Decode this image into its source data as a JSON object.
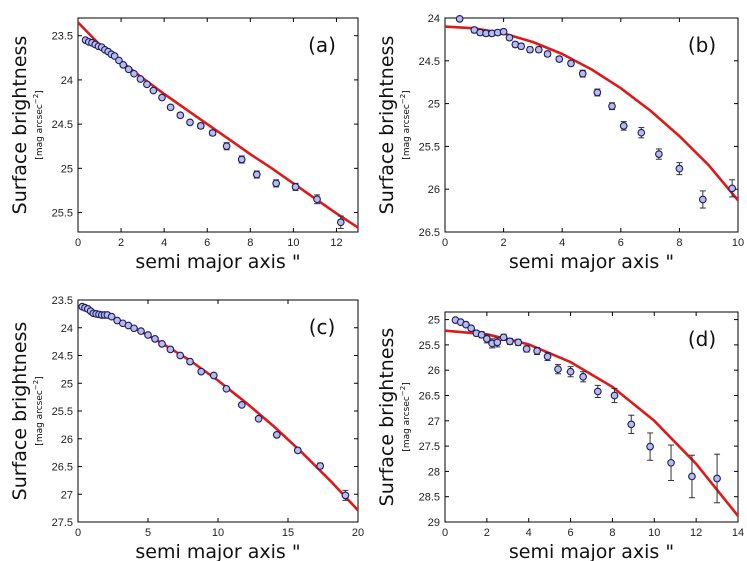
{
  "chart_data": [
    {
      "type": "scatter",
      "panel_label": "(a)",
      "xlabel": "semi major axis \"",
      "ylabel": "Surface brightness",
      "ylabel_unit": "[mag arcsec",
      "ylabel_unit_exp": "−2",
      "ylabel_unit_close": "]",
      "xlim": [
        0,
        13
      ],
      "ylim": [
        23.3,
        25.72
      ],
      "y_inverted": true,
      "xticks": [
        0,
        2,
        4,
        6,
        8,
        10,
        12
      ],
      "yticks": [
        23.5,
        24,
        24.5,
        25,
        25.5
      ],
      "xticklabels": [
        "0",
        "2",
        "4",
        "6",
        "8",
        "10",
        "12"
      ],
      "yticklabels": [
        "23.5",
        "24",
        "24.5",
        "25",
        "25.5"
      ],
      "series": [
        {
          "kind": "points",
          "color": "#1a1a6e",
          "x": [
            0.35,
            0.5,
            0.65,
            0.8,
            0.95,
            1.1,
            1.25,
            1.4,
            1.55,
            1.7,
            1.9,
            2.1,
            2.35,
            2.6,
            2.9,
            3.2,
            3.5,
            3.9,
            4.3,
            4.75,
            5.2,
            5.7,
            6.25,
            6.9,
            7.6,
            8.3,
            9.2,
            10.1,
            11.1,
            12.2
          ],
          "y": [
            23.55,
            23.57,
            23.58,
            23.6,
            23.62,
            23.63,
            23.66,
            23.68,
            23.71,
            23.73,
            23.78,
            23.83,
            23.88,
            23.93,
            23.99,
            24.05,
            24.12,
            24.2,
            24.31,
            24.4,
            24.48,
            24.52,
            24.6,
            24.75,
            24.9,
            25.07,
            25.17,
            25.21,
            25.35,
            25.61
          ],
          "err": [
            0.01,
            0.01,
            0.01,
            0.01,
            0.01,
            0.01,
            0.01,
            0.01,
            0.01,
            0.01,
            0.015,
            0.015,
            0.015,
            0.02,
            0.02,
            0.02,
            0.02,
            0.02,
            0.025,
            0.025,
            0.025,
            0.03,
            0.03,
            0.04,
            0.04,
            0.04,
            0.04,
            0.04,
            0.05,
            0.07
          ]
        },
        {
          "kind": "fit",
          "color": "#dd1a1a",
          "x": [
            0,
            1,
            2,
            3,
            4,
            5,
            6,
            7,
            8,
            9,
            10,
            11,
            12,
            13
          ],
          "y": [
            23.35,
            23.6,
            23.79,
            23.98,
            24.16,
            24.33,
            24.5,
            24.67,
            24.84,
            25.0,
            25.17,
            25.34,
            25.51,
            25.67
          ]
        }
      ]
    },
    {
      "type": "scatter",
      "panel_label": "(b)",
      "xlabel": "semi major axis \"",
      "ylabel": "Surface brightness",
      "ylabel_unit": "[mag arcsec",
      "ylabel_unit_exp": "−2",
      "ylabel_unit_close": "]",
      "xlim": [
        0,
        10
      ],
      "ylim": [
        24.0,
        26.5
      ],
      "y_inverted": true,
      "xticks": [
        0,
        2,
        4,
        6,
        8,
        10
      ],
      "yticks": [
        24,
        24.5,
        25,
        25.5,
        26,
        26.5
      ],
      "xticklabels": [
        "0",
        "2",
        "4",
        "6",
        "8",
        "10"
      ],
      "yticklabels": [
        "24",
        "24.5",
        "25",
        "25.5",
        "26",
        "26.5"
      ],
      "series": [
        {
          "kind": "points",
          "color": "#1a1a6e",
          "x": [
            0.5,
            1.0,
            1.2,
            1.4,
            1.6,
            1.8,
            2.0,
            2.2,
            2.4,
            2.6,
            2.9,
            3.2,
            3.5,
            3.9,
            4.3,
            4.7,
            5.2,
            5.7,
            6.1,
            6.7,
            7.3,
            8.0,
            8.8,
            9.8
          ],
          "y": [
            24.01,
            24.14,
            24.17,
            24.18,
            24.18,
            24.17,
            24.16,
            24.23,
            24.31,
            24.33,
            24.37,
            24.37,
            24.42,
            24.48,
            24.53,
            24.65,
            24.87,
            25.03,
            25.26,
            25.34,
            25.59,
            25.76,
            26.12,
            25.99
          ],
          "err": [
            0.02,
            0.03,
            0.03,
            0.03,
            0.03,
            0.03,
            0.03,
            0.03,
            0.03,
            0.03,
            0.03,
            0.03,
            0.03,
            0.03,
            0.03,
            0.04,
            0.04,
            0.04,
            0.05,
            0.06,
            0.06,
            0.07,
            0.1,
            0.1
          ]
        },
        {
          "kind": "fit",
          "color": "#dd1a1a",
          "x": [
            0,
            1,
            2,
            3,
            4,
            5,
            6,
            7,
            8,
            9,
            10
          ],
          "y": [
            24.1,
            24.12,
            24.18,
            24.28,
            24.42,
            24.6,
            24.82,
            25.08,
            25.38,
            25.72,
            26.13
          ]
        }
      ]
    },
    {
      "type": "scatter",
      "panel_label": "(c)",
      "xlabel": "semi major axis \"",
      "ylabel": "Surface brightness",
      "ylabel_unit": "[mag arcsec",
      "ylabel_unit_exp": "−2",
      "ylabel_unit_close": "]",
      "xlim": [
        0,
        20
      ],
      "ylim": [
        23.5,
        27.5
      ],
      "y_inverted": true,
      "xticks": [
        0,
        5,
        10,
        15,
        20
      ],
      "yticks": [
        23.5,
        24,
        24.5,
        25,
        25.5,
        26,
        26.5,
        27,
        27.5
      ],
      "xticklabels": [
        "0",
        "5",
        "10",
        "15",
        "20"
      ],
      "yticklabels": [
        "23.5",
        "24",
        "24.5",
        "25",
        "25.5",
        "26",
        "26.5",
        "27",
        "27.5"
      ],
      "series": [
        {
          "kind": "points",
          "color": "#1a1a6e",
          "x": [
            0.3,
            0.5,
            0.7,
            0.9,
            1.1,
            1.3,
            1.5,
            1.7,
            1.9,
            2.1,
            2.4,
            2.8,
            3.2,
            3.6,
            4.0,
            4.5,
            5.0,
            5.5,
            6.0,
            6.6,
            7.3,
            8.0,
            8.8,
            9.7,
            10.6,
            11.7,
            12.9,
            14.2,
            15.7,
            17.3,
            19.1
          ],
          "y": [
            23.62,
            23.64,
            23.66,
            23.7,
            23.74,
            23.75,
            23.76,
            23.77,
            23.77,
            23.77,
            23.8,
            23.87,
            23.92,
            23.96,
            24.01,
            24.06,
            24.13,
            24.2,
            24.29,
            24.39,
            24.5,
            24.61,
            24.79,
            24.86,
            25.1,
            25.39,
            25.64,
            25.93,
            26.21,
            26.49,
            27.02
          ],
          "err": [
            0.01,
            0.01,
            0.01,
            0.01,
            0.01,
            0.01,
            0.01,
            0.01,
            0.01,
            0.01,
            0.01,
            0.01,
            0.01,
            0.01,
            0.01,
            0.01,
            0.02,
            0.02,
            0.02,
            0.02,
            0.02,
            0.02,
            0.02,
            0.02,
            0.03,
            0.03,
            0.03,
            0.04,
            0.04,
            0.05,
            0.09
          ]
        },
        {
          "kind": "fit",
          "color": "#dd1a1a",
          "x": [
            0,
            2,
            4,
            6,
            8,
            10,
            12,
            14,
            16,
            18,
            20
          ],
          "y": [
            23.63,
            23.76,
            24.0,
            24.28,
            24.59,
            24.95,
            25.35,
            25.78,
            26.25,
            26.75,
            27.29
          ]
        }
      ]
    },
    {
      "type": "scatter",
      "panel_label": "(d)",
      "xlabel": "semi major axis \"",
      "ylabel": "Surface brightness",
      "ylabel_unit": "[mag arcsec",
      "ylabel_unit_exp": "−2",
      "ylabel_unit_close": "]",
      "xlim": [
        0,
        14
      ],
      "ylim": [
        24.85,
        29.0
      ],
      "y_inverted": true,
      "xticks": [
        0,
        2,
        4,
        6,
        8,
        10,
        12,
        14
      ],
      "yticks": [
        25,
        25.5,
        26,
        26.5,
        27,
        27.5,
        28,
        28.5,
        29
      ],
      "xticklabels": [
        "0",
        "2",
        "4",
        "6",
        "8",
        "10",
        "12",
        "14"
      ],
      "yticklabels": [
        "25",
        "25.5",
        "26",
        "26.5",
        "27",
        "27.5",
        "28",
        "28.5",
        "29"
      ],
      "series": [
        {
          "kind": "points",
          "color": "#1a1a6e",
          "x": [
            0.5,
            0.75,
            1.0,
            1.25,
            1.5,
            1.75,
            2.0,
            2.25,
            2.5,
            2.8,
            3.1,
            3.5,
            3.9,
            4.4,
            4.9,
            5.4,
            6.0,
            6.6,
            7.3,
            8.1,
            8.9,
            9.8,
            10.8,
            11.8,
            13.0
          ],
          "y": [
            25.01,
            25.05,
            25.1,
            25.17,
            25.27,
            25.3,
            25.38,
            25.47,
            25.45,
            25.35,
            25.43,
            25.45,
            25.58,
            25.62,
            25.73,
            25.98,
            26.03,
            26.13,
            26.42,
            26.5,
            27.07,
            27.51,
            27.83,
            28.1,
            28.14
          ],
          "err": [
            0.03,
            0.03,
            0.03,
            0.04,
            0.05,
            0.06,
            0.08,
            0.09,
            0.09,
            0.06,
            0.06,
            0.06,
            0.06,
            0.07,
            0.08,
            0.09,
            0.1,
            0.1,
            0.12,
            0.14,
            0.18,
            0.27,
            0.35,
            0.42,
            0.48
          ]
        },
        {
          "kind": "fit",
          "color": "#dd1a1a",
          "x": [
            0,
            2,
            4,
            6,
            8,
            10,
            12,
            14
          ],
          "y": [
            25.22,
            25.29,
            25.49,
            25.84,
            26.33,
            27.0,
            27.85,
            28.88
          ]
        }
      ]
    }
  ]
}
